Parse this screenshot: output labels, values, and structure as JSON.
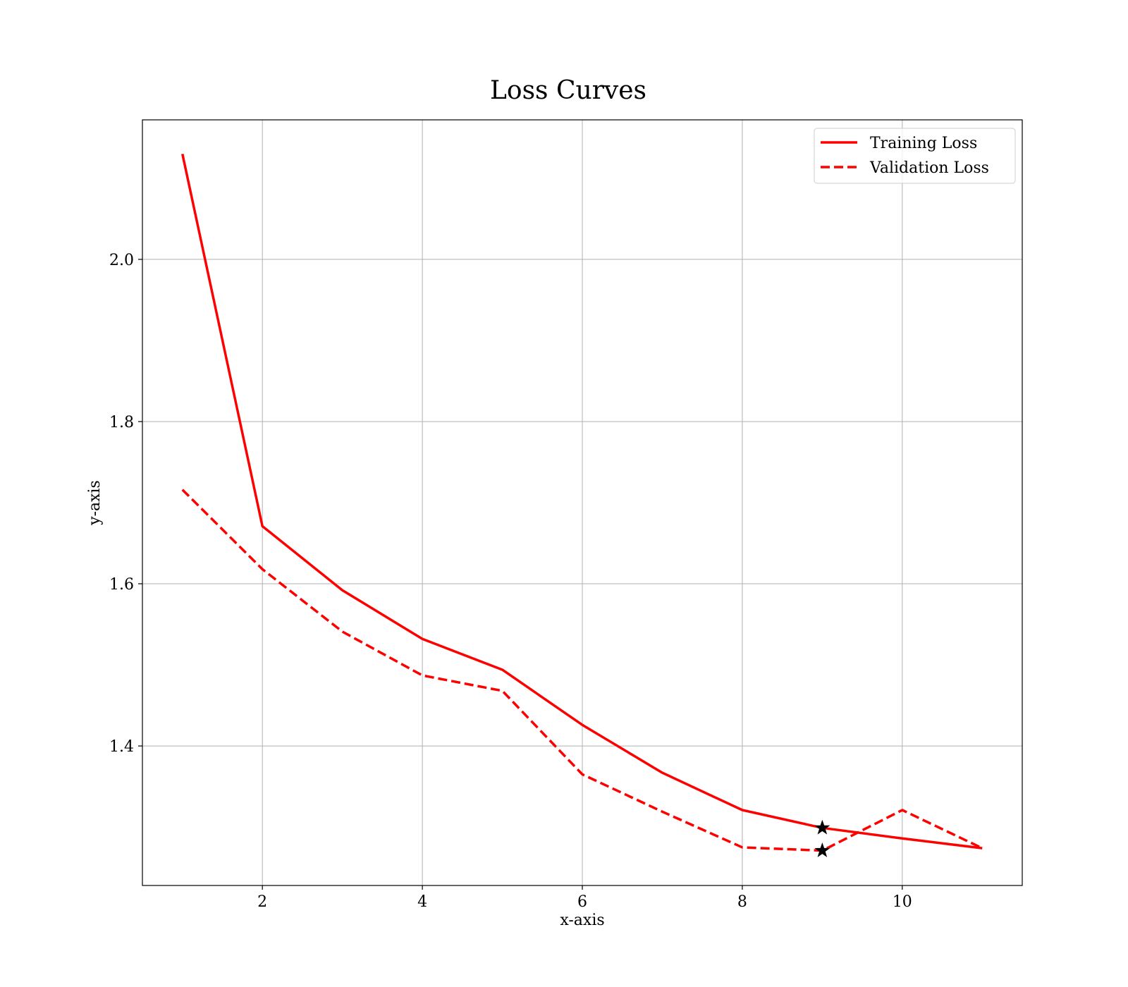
{
  "chart_data": {
    "type": "line",
    "title": "Loss Curves",
    "xlabel": "x-axis",
    "ylabel": "y-axis",
    "xlim": [
      0.5,
      11.5
    ],
    "ylim": [
      1.228,
      2.172
    ],
    "x_ticks": [
      2,
      4,
      6,
      8,
      10
    ],
    "y_ticks": [
      1.4,
      1.6,
      1.8,
      2.0
    ],
    "grid": true,
    "legend_position": "top-right",
    "x": [
      1,
      2,
      3,
      4,
      5,
      6,
      7,
      8,
      9,
      10,
      11
    ],
    "series": [
      {
        "name": "Training Loss",
        "color": "#ff0000",
        "line_style": "solid",
        "values": [
          2.13,
          1.671,
          1.592,
          1.532,
          1.494,
          1.426,
          1.367,
          1.321,
          1.299,
          1.286,
          1.274
        ]
      },
      {
        "name": "Validation Loss",
        "color": "#ff0000",
        "line_style": "dashed",
        "values": [
          1.716,
          1.618,
          1.541,
          1.487,
          1.468,
          1.365,
          1.319,
          1.275,
          1.271,
          1.321,
          1.274
        ]
      }
    ],
    "markers": [
      {
        "marker": "star-icon",
        "color": "#000000",
        "x": 9,
        "y": 1.299
      },
      {
        "marker": "star-icon",
        "color": "#000000",
        "x": 9,
        "y": 1.271
      }
    ]
  }
}
